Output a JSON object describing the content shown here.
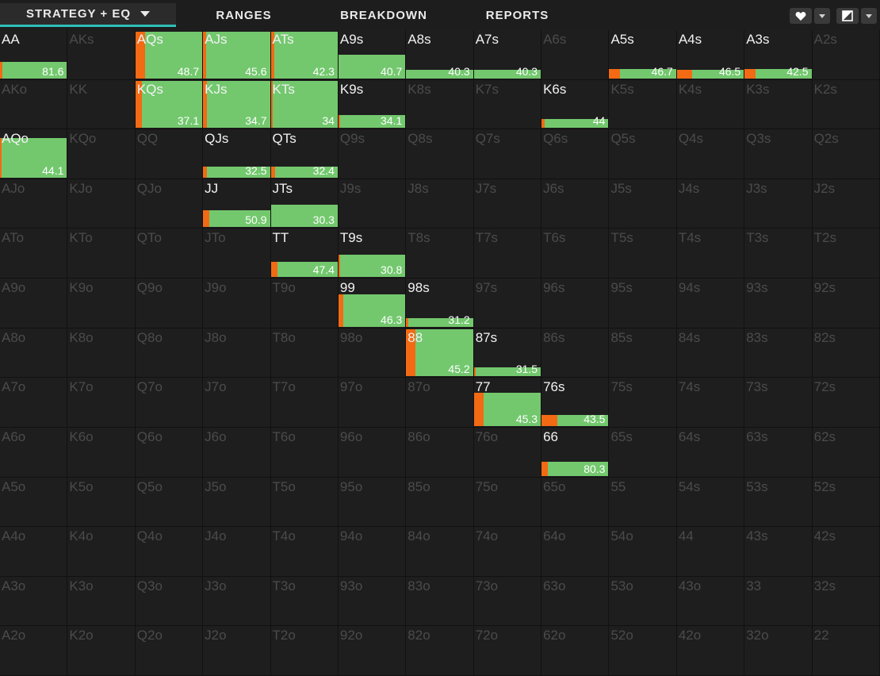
{
  "tabs": [
    {
      "label": "STRATEGY + EQ",
      "active": true
    },
    {
      "label": "RANGES",
      "active": false
    },
    {
      "label": "BREAKDOWN",
      "active": false
    },
    {
      "label": "REPORTS",
      "active": false
    }
  ],
  "toolbar": {
    "right_icons": [
      "heart-icon",
      "chevron-down-icon",
      "view-toggle-icon",
      "chevron-down-icon"
    ]
  },
  "colors": {
    "bar_green": "#73c86e",
    "bar_orange": "#f26a13",
    "cell_bg": "#1e1e1e",
    "tab_accent": "#2fbfb8"
  },
  "ranks": [
    "A",
    "K",
    "Q",
    "J",
    "T",
    "9",
    "8",
    "7",
    "6",
    "5",
    "4",
    "3",
    "2"
  ],
  "hands": {
    "AA": {
      "eq": "81.6",
      "fill": 0.36,
      "orange": 0.04
    },
    "AQs": {
      "eq": "48.7",
      "fill": 1.0,
      "orange": 0.14
    },
    "AJs": {
      "eq": "45.6",
      "fill": 1.0,
      "orange": 0.05
    },
    "ATs": {
      "eq": "42.3",
      "fill": 1.0,
      "orange": 0.05
    },
    "A9s": {
      "eq": "40.7",
      "fill": 0.52,
      "orange": 0.0
    },
    "A8s": {
      "eq": "40.3",
      "fill": 0.12,
      "orange": 0.0
    },
    "A7s": {
      "eq": "40.3",
      "fill": 0.12,
      "orange": 0.0
    },
    "A5s": {
      "eq": "46.7",
      "fill": 0.2,
      "orange": 0.16
    },
    "A4s": {
      "eq": "46.5",
      "fill": 0.12,
      "orange": 0.22
    },
    "A3s": {
      "eq": "42.5",
      "fill": 0.2,
      "orange": 0.16
    },
    "KQs": {
      "eq": "37.1",
      "fill": 1.0,
      "orange": 0.1
    },
    "KJs": {
      "eq": "34.7",
      "fill": 1.0,
      "orange": 0.06
    },
    "KTs": {
      "eq": "34",
      "fill": 1.0,
      "orange": 0.02
    },
    "K9s": {
      "eq": "34.1",
      "fill": 0.28,
      "orange": 0.02
    },
    "K6s": {
      "eq": "44",
      "fill": 0.14,
      "orange": 0.05
    },
    "AQo": {
      "eq": "44.1",
      "fill": 0.86,
      "orange": 0.02
    },
    "QJs": {
      "eq": "32.5",
      "fill": 0.24,
      "orange": 0.06
    },
    "QTs": {
      "eq": "32.4",
      "fill": 0.24,
      "orange": 0.06
    },
    "JJ": {
      "eq": "50.9",
      "fill": 0.36,
      "orange": 0.1
    },
    "JTs": {
      "eq": "30.3",
      "fill": 0.48,
      "orange": 0.0
    },
    "TT": {
      "eq": "47.4",
      "fill": 0.32,
      "orange": 0.1
    },
    "T9s": {
      "eq": "30.8",
      "fill": 0.48,
      "orange": 0.02
    },
    "99": {
      "eq": "46.3",
      "fill": 0.7,
      "orange": 0.07
    },
    "98s": {
      "eq": "31.2",
      "fill": 0.16,
      "orange": 0.04
    },
    "88": {
      "eq": "45.2",
      "fill": 1.0,
      "orange": 0.14
    },
    "87s": {
      "eq": "31.5",
      "fill": 0.1,
      "orange": 0.02
    },
    "77": {
      "eq": "45.3",
      "fill": 0.72,
      "orange": 0.14
    },
    "76s": {
      "eq": "43.5",
      "fill": 0.24,
      "orange": 0.24
    },
    "66": {
      "eq": "80.3",
      "fill": 0.3,
      "orange": 0.1
    }
  }
}
